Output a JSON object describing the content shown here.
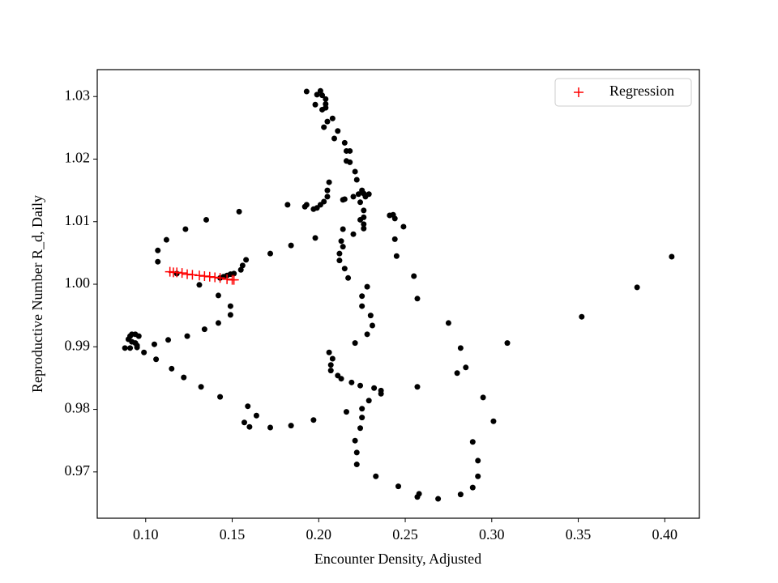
{
  "chart_data": {
    "type": "scatter",
    "x_label": "Encounter Density, Adjusted",
    "y_label": "Reproductive Number R_d, Daily",
    "xlim": [
      0.072,
      0.42
    ],
    "ylim": [
      0.9626,
      1.0343
    ],
    "xticks": [
      {
        "value": 0.1,
        "label": "0.10"
      },
      0.15,
      {
        "value": 0.2,
        "label": "0.20"
      },
      0.25,
      {
        "value": 0.3,
        "label": "0.30"
      },
      0.35,
      {
        "value": 0.4,
        "label": "0.40"
      }
    ],
    "yticks": [
      0.97,
      0.98,
      0.99,
      {
        "value": 1,
        "label": "1.00"
      },
      1.01,
      1.02,
      1.03
    ],
    "grid": false,
    "legend": "upper right",
    "series": [
      {
        "color": "#000000",
        "marker": "o",
        "x": [
          0.193,
          0.201,
          0.199,
          0.202,
          0.204,
          0.198,
          0.204,
          0.202,
          0.204,
          0.208,
          0.205,
          0.203,
          0.211,
          0.209,
          0.215,
          0.216,
          0.218,
          0.216,
          0.218,
          0.221,
          0.222,
          0.206,
          0.205,
          0.205,
          0.225,
          0.223,
          0.226,
          0.227,
          0.229,
          0.22,
          0.215,
          0.214,
          0.203,
          0.201,
          0.193,
          0.192,
          0.197,
          0.199,
          0.182,
          0.224,
          0.226,
          0.226,
          0.224,
          0.226,
          0.226,
          0.241,
          0.243,
          0.244,
          0.249,
          0.244,
          0.245,
          0.214,
          0.22,
          0.213,
          0.214,
          0.212,
          0.212,
          0.215,
          0.217,
          0.154,
          0.135,
          0.123,
          0.112,
          0.107,
          0.107,
          0.184,
          0.172,
          0.198,
          0.158,
          0.156,
          0.155,
          0.145,
          0.147,
          0.149,
          0.151,
          0.143,
          0.118,
          0.131,
          0.142,
          0.149,
          0.149,
          0.142,
          0.134,
          0.124,
          0.113,
          0.091,
          0.092,
          0.094,
          0.096,
          0.09,
          0.092,
          0.094,
          0.095,
          0.088,
          0.091,
          0.095,
          0.099,
          0.105,
          0.106,
          0.115,
          0.122,
          0.132,
          0.143,
          0.159,
          0.164,
          0.157,
          0.16,
          0.172,
          0.184,
          0.197,
          0.216,
          0.225,
          0.225,
          0.224,
          0.221,
          0.222,
          0.222,
          0.233,
          0.246,
          0.258,
          0.257,
          0.269,
          0.282,
          0.289,
          0.292,
          0.292,
          0.289,
          0.301,
          0.295,
          0.285,
          0.28,
          0.282,
          0.275,
          0.257,
          0.255,
          0.309,
          0.352,
          0.384,
          0.404,
          0.257,
          0.236,
          0.232,
          0.229,
          0.224,
          0.219,
          0.213,
          0.211,
          0.207,
          0.207,
          0.208,
          0.206,
          0.221,
          0.228,
          0.231,
          0.23,
          0.225,
          0.225,
          0.228,
          0.236
        ],
        "values": [
          1.0308,
          1.0309,
          1.0303,
          1.0302,
          1.0296,
          1.0287,
          1.0288,
          1.0279,
          1.0282,
          1.0265,
          1.026,
          1.0251,
          1.0245,
          1.0233,
          1.0226,
          1.0213,
          1.0213,
          1.0197,
          1.0195,
          1.018,
          1.0167,
          1.0163,
          1.015,
          1.014,
          1.015,
          1.0144,
          1.0145,
          1.014,
          1.0144,
          1.014,
          1.0136,
          1.0135,
          1.0132,
          1.0127,
          1.0127,
          1.0124,
          1.012,
          1.0122,
          1.0127,
          1.0131,
          1.0118,
          1.0107,
          1.0103,
          1.0096,
          1.0089,
          1.011,
          1.0111,
          1.0105,
          1.0092,
          1.0072,
          1.0045,
          1.0088,
          1.008,
          1.0069,
          1.006,
          1.0049,
          1.0038,
          1.0025,
          1.001,
          1.0116,
          1.0103,
          1.0088,
          1.0071,
          1.0054,
          1.0036,
          1.0062,
          1.0049,
          1.0074,
          1.0039,
          1.003,
          1.0023,
          1.0012,
          1.0014,
          1.0016,
          1.0017,
          1.001,
          1.0017,
          0.9999,
          0.9982,
          0.9965,
          0.9951,
          0.9938,
          0.9928,
          0.9917,
          0.9911,
          0.9917,
          0.992,
          0.992,
          0.9917,
          0.9912,
          0.9908,
          0.9906,
          0.9902,
          0.9898,
          0.9898,
          0.9899,
          0.9891,
          0.9904,
          0.988,
          0.9865,
          0.9851,
          0.9836,
          0.982,
          0.9805,
          0.979,
          0.9779,
          0.9772,
          0.9771,
          0.9774,
          0.9783,
          0.9796,
          0.9801,
          0.9787,
          0.977,
          0.975,
          0.9731,
          0.9712,
          0.9693,
          0.9677,
          0.9665,
          0.966,
          0.9657,
          0.9664,
          0.9675,
          0.9693,
          0.9718,
          0.9748,
          0.9781,
          0.9819,
          0.9867,
          0.9858,
          0.9898,
          0.9938,
          0.9977,
          1.0013,
          0.9906,
          0.9948,
          0.9995,
          1.0044,
          0.9836,
          0.9825,
          0.9834,
          0.9814,
          0.9838,
          0.9843,
          0.9849,
          0.9854,
          0.9862,
          0.9871,
          0.9881,
          0.9891,
          0.9906,
          0.992,
          0.9934,
          0.995,
          0.9965,
          0.9981,
          0.9996,
          0.983
        ]
      },
      {
        "name": "Regression",
        "color": "#ff0000",
        "marker": "+",
        "x": [
          0.114,
          0.116,
          0.118,
          0.121,
          0.124,
          0.127,
          0.131,
          0.134,
          0.137,
          0.14,
          0.143,
          0.147,
          0.15,
          0.151
        ],
        "values": [
          1.002,
          1.0019,
          1.0019,
          1.0018,
          1.0016,
          1.0015,
          1.0014,
          1.0013,
          1.0012,
          1.0011,
          1.001,
          1.0008,
          1.0007,
          1.0007
        ]
      }
    ]
  }
}
